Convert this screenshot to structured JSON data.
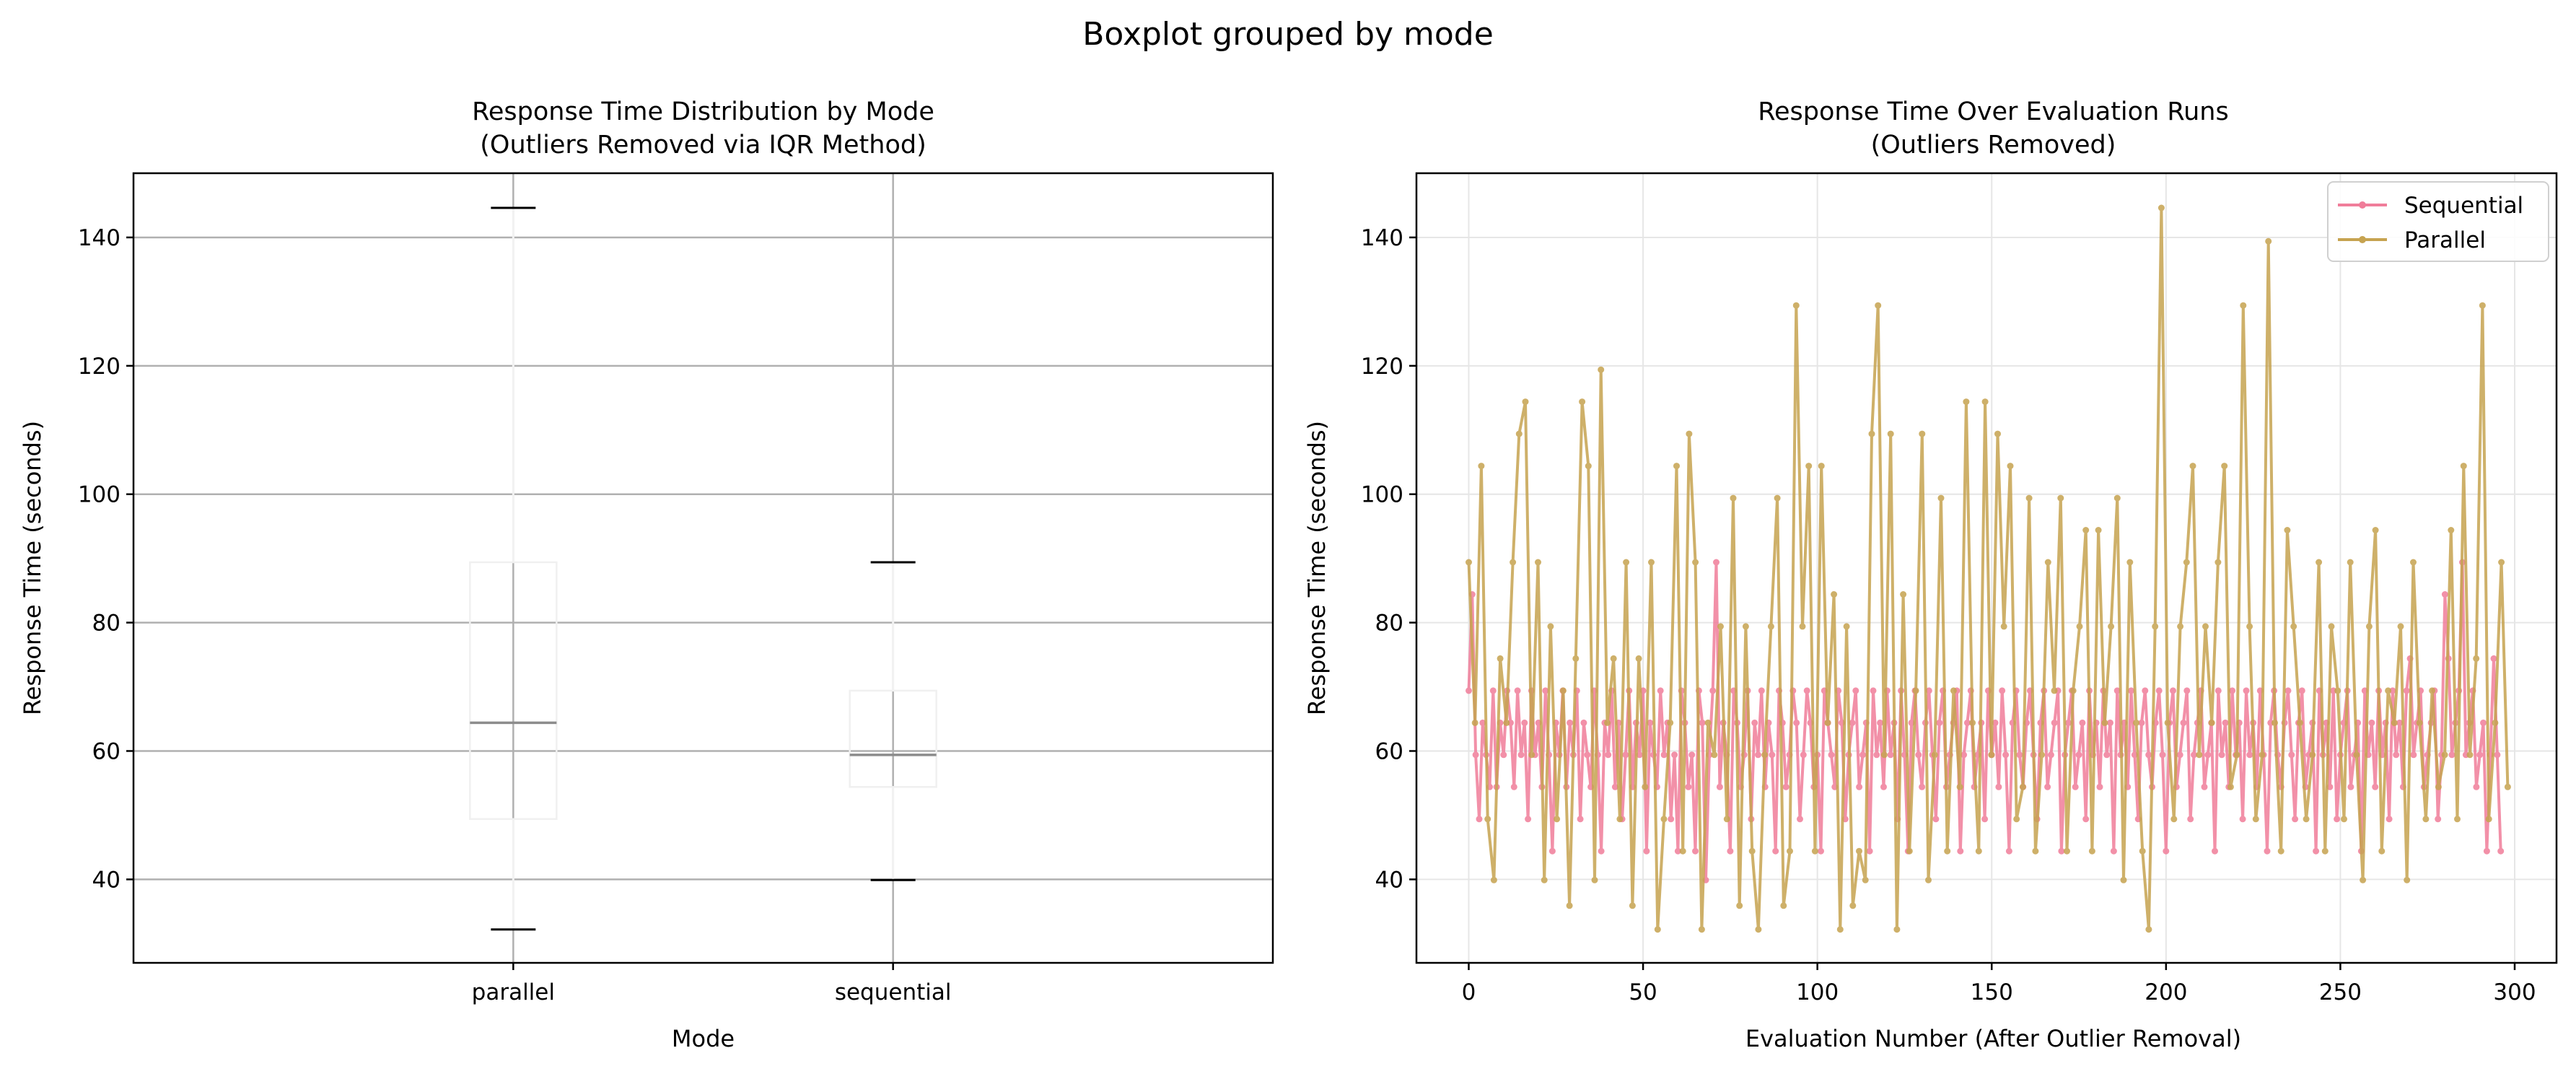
{
  "suptitle": "Boxplot grouped by mode",
  "chart_data": [
    {
      "type": "box",
      "title_line1": "Response Time Distribution by Mode",
      "title_line2": "(Outliers Removed via IQR Method)",
      "xlabel": "Mode",
      "ylabel": "Response Time (seconds)",
      "ylim": [
        27,
        150
      ],
      "yticks": [
        40,
        60,
        80,
        100,
        120,
        140
      ],
      "grid": true,
      "categories": [
        "parallel",
        "sequential"
      ],
      "boxes": [
        {
          "name": "parallel",
          "whisker_low": 32.2,
          "q1": 49.4,
          "median": 64.4,
          "q3": 89.4,
          "whisker_high": 144.6
        },
        {
          "name": "sequential",
          "whisker_low": 39.9,
          "q1": 54.4,
          "median": 59.4,
          "q3": 69.4,
          "whisker_high": 89.4
        }
      ]
    },
    {
      "type": "line",
      "title_line1": "Response Time Over Evaluation Runs",
      "title_line2": "(Outliers Removed)",
      "xlabel": "Evaluation Number (After Outlier Removal)",
      "ylabel": "Response Time (seconds)",
      "xlim": [
        -15,
        312
      ],
      "ylim": [
        27,
        150
      ],
      "xticks": [
        0,
        50,
        100,
        150,
        200,
        250,
        300
      ],
      "yticks": [
        40,
        60,
        80,
        100,
        120,
        140
      ],
      "grid": true,
      "legend_position": "top-right",
      "series": [
        {
          "name": "Sequential",
          "color": "#f07d9a",
          "values": [
            69.4,
            84.4,
            59.4,
            49.4,
            64.4,
            59.4,
            54.4,
            69.4,
            54.4,
            64.4,
            59.4,
            69.4,
            64.4,
            54.4,
            69.4,
            59.4,
            64.4,
            49.4,
            69.4,
            59.4,
            64.4,
            54.4,
            69.4,
            59.4,
            44.4,
            64.4,
            59.4,
            69.4,
            54.4,
            64.4,
            59.4,
            69.4,
            49.4,
            64.4,
            59.4,
            54.4,
            69.4,
            59.4,
            44.4,
            64.4,
            59.4,
            69.4,
            54.4,
            64.4,
            49.4,
            59.4,
            69.4,
            54.4,
            64.4,
            59.4,
            69.4,
            44.4,
            64.4,
            59.4,
            54.4,
            69.4,
            59.4,
            64.4,
            49.4,
            59.4,
            44.4,
            69.4,
            64.4,
            54.4,
            59.4,
            44.4,
            69.4,
            64.4,
            39.9,
            59.4,
            69.4,
            89.4,
            54.4,
            64.4,
            59.4,
            44.4,
            69.4,
            64.4,
            54.4,
            59.4,
            69.4,
            49.4,
            64.4,
            59.4,
            69.4,
            54.4,
            64.4,
            59.4,
            44.4,
            69.4,
            64.4,
            54.4,
            59.4,
            69.4,
            64.4,
            49.4,
            59.4,
            69.4,
            64.4,
            54.4,
            59.4,
            44.4,
            69.4,
            64.4,
            59.4,
            54.4,
            69.4,
            64.4,
            49.4,
            59.4,
            64.4,
            69.4,
            54.4,
            59.4,
            64.4,
            44.4,
            69.4,
            59.4,
            64.4,
            54.4,
            69.4,
            59.4,
            64.4,
            49.4,
            69.4,
            59.4,
            44.4,
            64.4,
            69.4,
            59.4,
            54.4,
            64.4,
            69.4,
            59.4,
            49.4,
            64.4,
            69.4,
            54.4,
            59.4,
            64.4,
            69.4,
            44.4,
            59.4,
            64.4,
            69.4,
            54.4,
            59.4,
            64.4,
            49.4,
            69.4,
            59.4,
            64.4,
            54.4,
            69.4,
            59.4,
            44.4,
            64.4,
            69.4,
            59.4,
            54.4,
            64.4,
            69.4,
            59.4,
            49.4,
            64.4,
            69.4,
            54.4,
            59.4,
            64.4,
            69.4,
            44.4,
            59.4,
            64.4,
            69.4,
            54.4,
            59.4,
            64.4,
            49.4,
            69.4,
            59.4,
            64.4,
            54.4,
            69.4,
            59.4,
            64.4,
            44.4,
            69.4,
            59.4,
            64.4,
            54.4,
            69.4,
            59.4,
            49.4,
            64.4,
            69.4,
            59.4,
            54.4,
            64.4,
            69.4,
            59.4,
            44.4,
            64.4,
            69.4,
            54.4,
            59.4,
            64.4,
            69.4,
            49.4,
            59.4,
            64.4,
            69.4,
            54.4,
            59.4,
            64.4,
            44.4,
            69.4,
            59.4,
            64.4,
            54.4,
            69.4,
            59.4,
            64.4,
            49.4,
            69.4,
            59.4,
            64.4,
            54.4,
            69.4,
            59.4,
            44.4,
            64.4,
            69.4,
            59.4,
            54.4,
            64.4,
            69.4,
            59.4,
            49.4,
            64.4,
            69.4,
            54.4,
            59.4,
            64.4,
            44.4,
            69.4,
            59.4,
            64.4,
            54.4,
            69.4,
            49.4,
            59.4,
            64.4,
            69.4,
            54.4,
            59.4,
            64.4,
            44.4,
            69.4,
            59.4,
            64.4,
            54.4,
            69.4,
            59.4,
            64.4,
            49.4,
            69.4,
            59.4,
            64.4,
            54.4,
            69.4,
            74.4,
            59.4,
            64.4,
            69.4,
            54.4,
            59.4,
            64.4,
            69.4,
            49.4,
            59.4,
            84.4,
            74.4,
            59.4,
            64.4,
            69.4,
            89.4,
            59.4,
            64.4,
            69.4,
            54.4,
            59.4,
            64.4,
            44.4,
            59.4,
            74.4,
            59.4,
            44.4
          ]
        },
        {
          "name": "Parallel",
          "color": "#c6a350",
          "values": [
            89.4,
            64.4,
            104.4,
            49.4,
            39.9,
            74.4,
            64.4,
            89.4,
            109.4,
            114.4,
            59.4,
            89.4,
            39.9,
            79.4,
            49.4,
            69.4,
            35.9,
            74.4,
            114.4,
            104.4,
            39.9,
            119.4,
            64.4,
            74.4,
            49.4,
            89.4,
            35.9,
            74.4,
            54.4,
            89.4,
            32.2,
            49.4,
            64.4,
            104.4,
            44.4,
            109.4,
            89.4,
            32.2,
            64.4,
            59.4,
            79.4,
            49.4,
            99.4,
            35.9,
            79.4,
            44.4,
            32.2,
            59.4,
            79.4,
            99.4,
            35.9,
            44.4,
            129.4,
            79.4,
            104.4,
            44.4,
            104.4,
            64.4,
            84.4,
            32.2,
            79.4,
            35.9,
            44.4,
            39.9,
            109.4,
            129.4,
            59.4,
            109.4,
            32.2,
            84.4,
            44.4,
            69.4,
            109.4,
            39.9,
            59.4,
            99.4,
            44.4,
            69.4,
            54.4,
            114.4,
            64.4,
            44.4,
            114.4,
            59.4,
            109.4,
            79.4,
            104.4,
            49.4,
            54.4,
            99.4,
            44.4,
            59.4,
            89.4,
            69.4,
            99.4,
            44.4,
            69.4,
            79.4,
            94.4,
            44.4,
            94.4,
            64.4,
            79.4,
            99.4,
            39.9,
            89.4,
            64.4,
            44.4,
            32.2,
            79.4,
            144.6,
            64.4,
            49.4,
            79.4,
            89.4,
            104.4,
            59.4,
            79.4,
            64.4,
            89.4,
            104.4,
            54.4,
            59.4,
            129.4,
            79.4,
            49.4,
            59.4,
            139.4,
            64.4,
            44.4,
            94.4,
            79.4,
            64.4,
            49.4,
            59.4,
            89.4,
            44.4,
            79.4,
            69.4,
            49.4,
            89.4,
            59.4,
            39.9,
            79.4,
            94.4,
            44.4,
            69.4,
            64.4,
            79.4,
            39.9,
            89.4,
            64.4,
            49.4,
            69.4,
            54.4,
            59.4,
            94.4,
            49.4,
            104.4,
            59.4,
            74.4,
            129.4,
            49.4,
            64.4,
            89.4,
            54.4
          ]
        }
      ]
    }
  ]
}
